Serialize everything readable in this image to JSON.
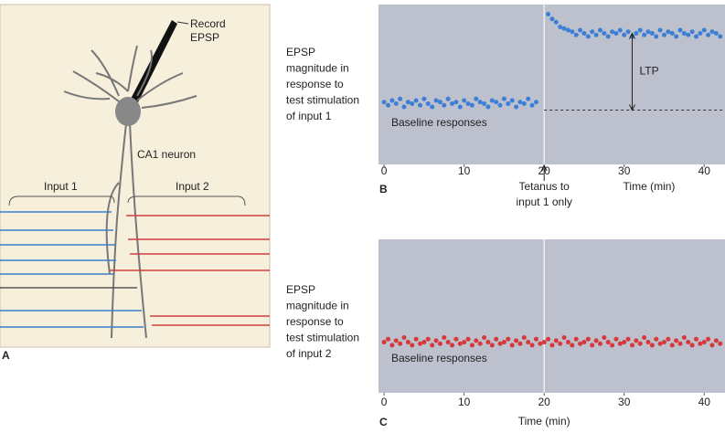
{
  "diagram": {
    "panel": "A",
    "record_label": [
      "Record",
      "EPSP"
    ],
    "neuron_label": "CA1 neuron",
    "input1": "Input 1",
    "input2": "Input 2"
  },
  "chart_data": [
    {
      "type": "scatter",
      "panel": "B",
      "ylabel_lines": [
        "EPSP",
        "magnitude in",
        "response to",
        "test stimulation",
        "of input 1"
      ],
      "xlabel": "Time (min)",
      "annotation": "Baseline responses",
      "event_x": 20,
      "event_label": [
        "Tetanus to",
        "input 1 only"
      ],
      "reference_line": 34,
      "ltp": {
        "text": "LTP",
        "x": 31,
        "from": 34,
        "to": 82
      },
      "xlim": [
        -0.7,
        42.6
      ],
      "ylim": [
        0,
        100
      ],
      "xticks": [
        0,
        10,
        20,
        30,
        40
      ],
      "x": [
        0,
        0.5,
        1,
        1.5,
        2,
        2.5,
        3,
        3.5,
        4,
        4.5,
        5,
        5.5,
        6,
        6.5,
        7,
        7.5,
        8,
        8.5,
        9,
        9.5,
        10,
        10.5,
        11,
        11.5,
        12,
        12.5,
        13,
        13.5,
        14,
        14.5,
        15,
        15.5,
        16,
        16.5,
        17,
        17.5,
        18,
        18.5,
        19,
        20.5,
        21,
        21.5,
        22,
        22.5,
        23,
        23.5,
        24,
        24.5,
        25,
        25.5,
        26,
        26.5,
        27,
        27.5,
        28,
        28.5,
        29,
        29.5,
        30,
        30.5,
        31,
        31.5,
        32,
        32.5,
        33,
        33.5,
        34,
        34.5,
        35,
        35.5,
        36,
        36.5,
        37,
        37.5,
        38,
        38.5,
        39,
        39.5,
        40,
        40.5,
        41,
        41.5,
        42
      ],
      "series": [
        {
          "color": "#3b7fd6",
          "values": [
            39,
            37,
            40,
            38,
            41,
            36,
            39,
            38,
            40,
            37,
            41,
            38,
            36,
            40,
            39,
            37,
            41,
            38,
            39,
            36,
            40,
            38,
            37,
            41,
            39,
            38,
            36,
            40,
            39,
            37,
            41,
            38,
            40,
            36,
            39,
            38,
            41,
            37,
            39,
            94,
            91,
            89,
            86,
            85,
            84,
            83,
            81,
            84,
            82,
            80,
            83,
            81,
            84,
            82,
            80,
            83,
            82,
            84,
            81,
            83,
            80,
            82,
            84,
            81,
            83,
            82,
            80,
            84,
            81,
            83,
            82,
            80,
            84,
            82,
            81,
            83,
            80,
            82,
            84,
            81,
            83,
            82,
            80
          ]
        }
      ]
    },
    {
      "type": "scatter",
      "panel": "C",
      "ylabel_lines": [
        "EPSP",
        "magnitude in",
        "response to",
        "test stimulation",
        "of input 2"
      ],
      "xlabel": "Time (min)",
      "annotation": "Baseline responses",
      "event_x": 20,
      "xlim": [
        -0.7,
        42.6
      ],
      "ylim": [
        0,
        100
      ],
      "xticks": [
        0,
        10,
        20,
        30,
        40
      ],
      "x": [
        0,
        0.5,
        1,
        1.5,
        2,
        2.5,
        3,
        3.5,
        4,
        4.5,
        5,
        5.5,
        6,
        6.5,
        7,
        7.5,
        8,
        8.5,
        9,
        9.5,
        10,
        10.5,
        11,
        11.5,
        12,
        12.5,
        13,
        13.5,
        14,
        14.5,
        15,
        15.5,
        16,
        16.5,
        17,
        17.5,
        18,
        18.5,
        19,
        19.5,
        20,
        20.5,
        21,
        21.5,
        22,
        22.5,
        23,
        23.5,
        24,
        24.5,
        25,
        25.5,
        26,
        26.5,
        27,
        27.5,
        28,
        28.5,
        29,
        29.5,
        30,
        30.5,
        31,
        31.5,
        32,
        32.5,
        33,
        33.5,
        34,
        34.5,
        35,
        35.5,
        36,
        36.5,
        37,
        37.5,
        38,
        38.5,
        39,
        39.5,
        40,
        40.5,
        41,
        41.5,
        42
      ],
      "series": [
        {
          "color": "#d9383a",
          "values": [
            33,
            35,
            31,
            34,
            32,
            36,
            33,
            31,
            35,
            32,
            33,
            35,
            31,
            34,
            32,
            36,
            33,
            31,
            35,
            32,
            33,
            35,
            31,
            34,
            32,
            36,
            33,
            31,
            35,
            32,
            33,
            35,
            31,
            34,
            32,
            36,
            33,
            31,
            35,
            32,
            33,
            35,
            31,
            34,
            32,
            36,
            33,
            31,
            35,
            32,
            33,
            35,
            31,
            34,
            32,
            36,
            33,
            31,
            35,
            32,
            33,
            35,
            31,
            34,
            32,
            36,
            33,
            31,
            35,
            32,
            33,
            35,
            31,
            34,
            32,
            36,
            33,
            31,
            35,
            32,
            33,
            35,
            31,
            34,
            32
          ]
        }
      ]
    }
  ]
}
